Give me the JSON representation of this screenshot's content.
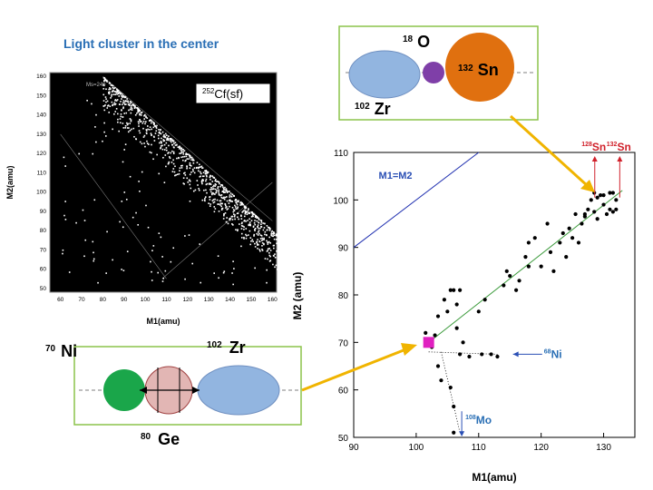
{
  "title": "Light cluster in the center",
  "left_chart": {
    "annotation": "Cf(sf)",
    "annotation_sup": "252",
    "inner_label": "Ms=240",
    "xlabel": "M1(amu)",
    "ylabel": "M2(amu)",
    "xticks": [
      "60",
      "70",
      "80",
      "90",
      "100",
      "110",
      "120",
      "130",
      "140",
      "150",
      "160"
    ],
    "yticks": [
      "50",
      "60",
      "70",
      "80",
      "90",
      "100",
      "110",
      "120",
      "130",
      "140",
      "150",
      "160"
    ]
  },
  "top_diagram": {
    "left_label": "Zr",
    "left_mass": "102",
    "middle_label": "O",
    "middle_mass": "18",
    "right_label": "Sn",
    "right_mass": "132",
    "colors": {
      "left": "#92b5e0",
      "middle": "#7f3fa8",
      "right": "#e0700f",
      "frame": "#8bc34a"
    }
  },
  "bottom_diagram": {
    "left_label": "Ni",
    "left_mass": "70",
    "middle_label": "Ge",
    "middle_mass": "80",
    "right_label": "Zr",
    "right_mass": "102",
    "colors": {
      "left": "#1aa64a",
      "middle": "#e2b6b4",
      "right": "#92b5e0",
      "frame": "#8bc34a"
    }
  },
  "chart_data": {
    "type": "scatter",
    "xlabel": "M1(amu)",
    "ylabel": "M2 (amu)",
    "xlim": [
      90,
      135
    ],
    "ylim": [
      50,
      110
    ],
    "xticks": [
      90,
      100,
      110,
      120,
      130
    ],
    "yticks": [
      50,
      60,
      70,
      80,
      90,
      100,
      110
    ],
    "diagonal_label": "M1=M2",
    "annotations": [
      {
        "text": "Sn",
        "sup": "128",
        "x": 128.5,
        "y": 108,
        "color": "#d0202a"
      },
      {
        "text": "Sn",
        "sup": "132",
        "x": 132.5,
        "y": 108,
        "color": "#d0202a"
      },
      {
        "text": "Ni",
        "sup": "68",
        "x": 119,
        "y": 67.5,
        "color": "#2a6fb5"
      },
      {
        "text": "Mo",
        "sup": "108",
        "x": 107,
        "y": 52.5,
        "color": "#2a6fb5"
      }
    ],
    "highlight_point": {
      "x": 102,
      "y": 70,
      "color": "#e020c0"
    },
    "fit_line": {
      "x": [
        102,
        133
      ],
      "y": [
        70,
        102
      ],
      "color": "#3a9a3a"
    },
    "points": [
      {
        "x": 101.5,
        "y": 72
      },
      {
        "x": 102.5,
        "y": 69
      },
      {
        "x": 103,
        "y": 71.5
      },
      {
        "x": 103.5,
        "y": 75.5
      },
      {
        "x": 103.5,
        "y": 65
      },
      {
        "x": 104,
        "y": 62
      },
      {
        "x": 104.5,
        "y": 79
      },
      {
        "x": 105,
        "y": 76.5
      },
      {
        "x": 105.5,
        "y": 81
      },
      {
        "x": 106,
        "y": 81
      },
      {
        "x": 105.5,
        "y": 60.5
      },
      {
        "x": 106,
        "y": 56.5
      },
      {
        "x": 106.5,
        "y": 78
      },
      {
        "x": 106.5,
        "y": 73
      },
      {
        "x": 107,
        "y": 67.5
      },
      {
        "x": 107.5,
        "y": 70
      },
      {
        "x": 107,
        "y": 81
      },
      {
        "x": 106,
        "y": 51
      },
      {
        "x": 108.5,
        "y": 67
      },
      {
        "x": 110.5,
        "y": 67.5
      },
      {
        "x": 110,
        "y": 76.5
      },
      {
        "x": 111,
        "y": 79
      },
      {
        "x": 112,
        "y": 67.5
      },
      {
        "x": 113,
        "y": 67
      },
      {
        "x": 114,
        "y": 82
      },
      {
        "x": 114.5,
        "y": 85
      },
      {
        "x": 115,
        "y": 84
      },
      {
        "x": 116,
        "y": 81
      },
      {
        "x": 116.5,
        "y": 83
      },
      {
        "x": 117.5,
        "y": 88
      },
      {
        "x": 118,
        "y": 91
      },
      {
        "x": 118,
        "y": 86
      },
      {
        "x": 119,
        "y": 92
      },
      {
        "x": 120,
        "y": 86
      },
      {
        "x": 121,
        "y": 95
      },
      {
        "x": 121.5,
        "y": 89
      },
      {
        "x": 122,
        "y": 85
      },
      {
        "x": 123,
        "y": 91
      },
      {
        "x": 123.5,
        "y": 93
      },
      {
        "x": 124,
        "y": 88
      },
      {
        "x": 124.5,
        "y": 94
      },
      {
        "x": 125,
        "y": 92
      },
      {
        "x": 125.5,
        "y": 97
      },
      {
        "x": 126,
        "y": 91
      },
      {
        "x": 126.5,
        "y": 95
      },
      {
        "x": 127,
        "y": 96.5
      },
      {
        "x": 127.5,
        "y": 98
      },
      {
        "x": 128,
        "y": 100
      },
      {
        "x": 128.5,
        "y": 101.5
      },
      {
        "x": 129,
        "y": 100.5
      },
      {
        "x": 129.5,
        "y": 101
      },
      {
        "x": 130,
        "y": 99
      },
      {
        "x": 130,
        "y": 101
      },
      {
        "x": 130.5,
        "y": 97
      },
      {
        "x": 131,
        "y": 101.5
      },
      {
        "x": 131,
        "y": 98
      },
      {
        "x": 131.5,
        "y": 97.5
      },
      {
        "x": 131.5,
        "y": 101.5
      },
      {
        "x": 132,
        "y": 100
      },
      {
        "x": 132,
        "y": 98
      },
      {
        "x": 127,
        "y": 97
      },
      {
        "x": 129,
        "y": 96
      },
      {
        "x": 128.5,
        "y": 97.5
      }
    ]
  }
}
